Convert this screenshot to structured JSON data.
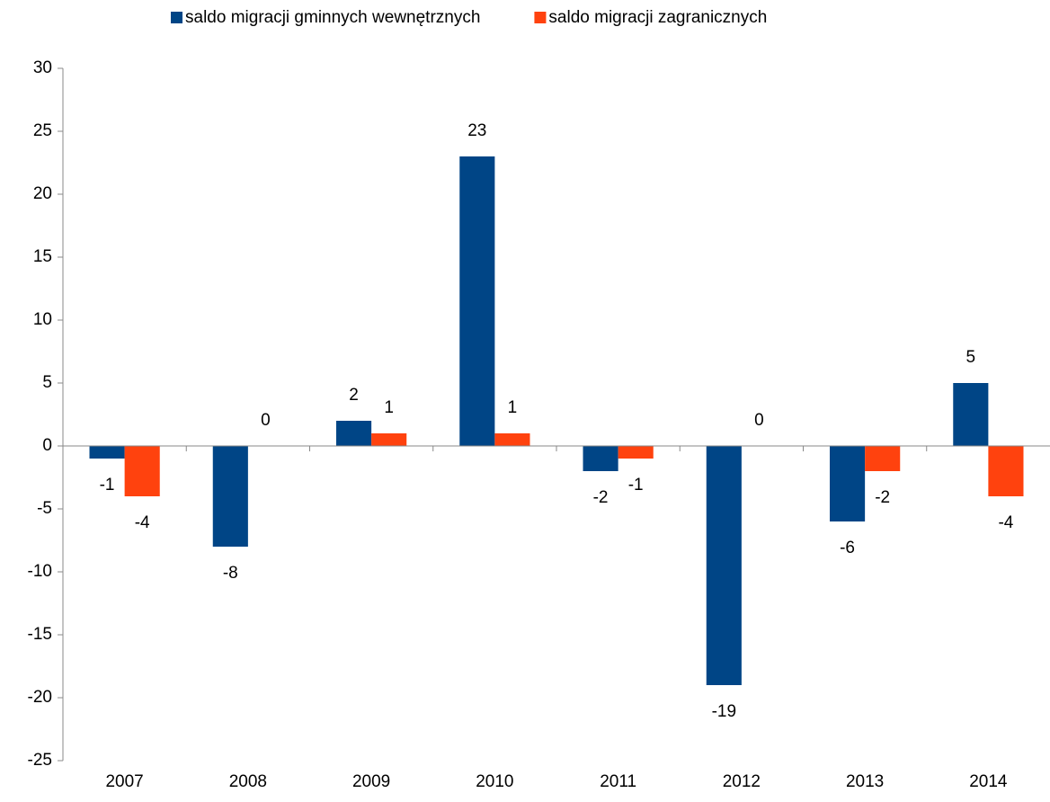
{
  "chart_data": {
    "type": "bar",
    "categories": [
      "2007",
      "2008",
      "2009",
      "2010",
      "2011",
      "2012",
      "2013",
      "2014"
    ],
    "series": [
      {
        "name": "saldo migracji gminnych wewnętrznych",
        "color": "#004586",
        "values": [
          -1,
          -8,
          2,
          23,
          -2,
          -19,
          -6,
          5
        ]
      },
      {
        "name": "saldo migracji zagranicznych",
        "color": "#ff420e",
        "values": [
          -4,
          0,
          1,
          1,
          -1,
          0,
          -2,
          -4
        ]
      }
    ],
    "ylim": [
      -25,
      30
    ],
    "yticks": [
      -25,
      -20,
      -15,
      -10,
      -5,
      0,
      5,
      10,
      15,
      20,
      25,
      30
    ],
    "grid": false,
    "legend": "top",
    "data_labels": true
  }
}
